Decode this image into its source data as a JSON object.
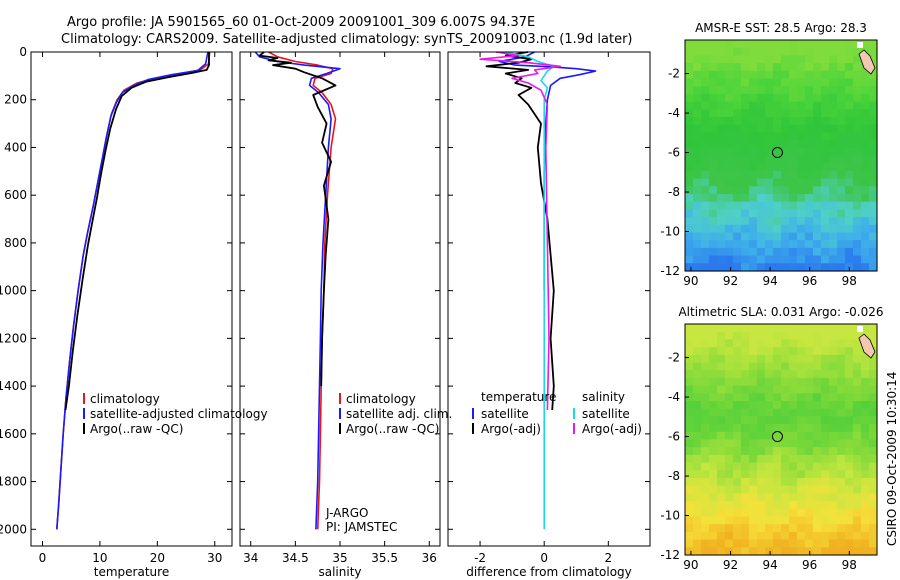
{
  "title": {
    "line1": "Argo profile: JA 5901565_60 01-Oct-2009 20091001_309 6.007S 94.37E",
    "line2": "Climatology: CARS2009. Satellite-adjusted climatology: synTS_20091003.nc (1.9d later)"
  },
  "credit": "CSIRO 09-Oct-2009 10:30:14",
  "chart_data": [
    {
      "type": "line",
      "id": "temperature",
      "xlabel": "temperature",
      "xlim": [
        -2,
        33
      ],
      "xticks": [
        0,
        10,
        20,
        30
      ],
      "ylim": [
        0,
        2070
      ],
      "yticks": [
        0,
        200,
        400,
        600,
        800,
        1000,
        1200,
        1400,
        1600,
        1800,
        2000
      ],
      "yreversed": true,
      "legend": [
        "climatology",
        "satellite-adjusted climatology",
        "Argo(..raw -QC)"
      ],
      "series": [
        {
          "name": "climatology",
          "color": "#e8161b",
          "width": 1.6,
          "x": [
            29.1,
            28.9,
            27.5,
            24,
            19.5,
            16.5,
            14.2,
            13,
            12,
            11.2,
            10.4,
            9.6,
            8.8,
            7.9,
            7.1,
            6.2,
            5.4,
            4.7,
            4.1,
            3.6,
            3.2,
            2.8,
            2.5
          ],
          "y": [
            0,
            50,
            75,
            90,
            110,
            130,
            160,
            200,
            260,
            350,
            450,
            550,
            650,
            750,
            850,
            1000,
            1150,
            1300,
            1450,
            1600,
            1750,
            1900,
            2000
          ]
        },
        {
          "name": "satellite-adjusted climatology",
          "color": "#1a1aff",
          "width": 1.6,
          "x": [
            28.8,
            28.4,
            27,
            22.5,
            18.5,
            15.9,
            13.9,
            12.9,
            11.9,
            11.1,
            10.4,
            9.6,
            8.8,
            7.9,
            7.1,
            6.2,
            5.4,
            4.7,
            4.1,
            3.6,
            3.2,
            2.8,
            2.5
          ],
          "y": [
            0,
            50,
            78,
            95,
            115,
            140,
            170,
            210,
            270,
            360,
            450,
            550,
            650,
            750,
            850,
            1000,
            1150,
            1300,
            1450,
            1600,
            1750,
            1900,
            2000
          ]
        },
        {
          "name": "Argo(..raw -QC)",
          "color": "#000000",
          "width": 1.8,
          "x": [
            29,
            29,
            28.6,
            26,
            22,
            18,
            15.5,
            13.8,
            12.8,
            11.8,
            11,
            10.2,
            9.5,
            8.7,
            7.9,
            7.0,
            6.1,
            5.3,
            4.6,
            4.0
          ],
          "y": [
            0,
            55,
            75,
            88,
            105,
            125,
            150,
            185,
            240,
            320,
            410,
            510,
            610,
            710,
            810,
            950,
            1100,
            1250,
            1400,
            1500
          ]
        }
      ]
    },
    {
      "type": "line",
      "id": "salinity",
      "xlabel": "salinity",
      "xlim": [
        33.88,
        36.12
      ],
      "xticks": [
        34,
        34.5,
        35,
        35.5,
        36
      ],
      "ylim": [
        0,
        2070
      ],
      "yreversed": true,
      "legend": [
        "climatology",
        "satellite adj. clim.",
        "Argo(..raw -QC)"
      ],
      "annotation": [
        "J-ARGO",
        "PI: JAMSTEC"
      ],
      "series": [
        {
          "name": "climatology",
          "color": "#e8161b",
          "width": 1.6,
          "x": [
            34.2,
            34.3,
            34.5,
            34.75,
            34.92,
            34.9,
            34.72,
            34.7,
            34.8,
            34.9,
            34.95,
            34.9,
            34.86,
            34.83,
            34.82,
            34.8,
            34.79,
            34.78,
            34.77,
            34.76,
            34.75
          ],
          "y": [
            0,
            20,
            40,
            55,
            70,
            90,
            110,
            140,
            170,
            220,
            280,
            400,
            600,
            800,
            1000,
            1200,
            1400,
            1600,
            1800,
            1900,
            2000
          ]
        },
        {
          "name": "satellite adj. clim.",
          "color": "#1a1aff",
          "width": 1.6,
          "x": [
            34.05,
            34.1,
            34.3,
            34.6,
            35.0,
            34.85,
            34.68,
            34.66,
            34.76,
            34.87,
            34.9,
            34.87,
            34.84,
            34.81,
            34.79,
            34.78,
            34.77,
            34.76,
            34.75,
            34.74,
            34.73
          ],
          "y": [
            0,
            20,
            40,
            55,
            70,
            90,
            110,
            140,
            170,
            220,
            280,
            400,
            600,
            800,
            1000,
            1200,
            1400,
            1600,
            1800,
            1900,
            2000
          ]
        },
        {
          "name": "Argo(..raw -QC)",
          "color": "#000000",
          "width": 1.8,
          "x": [
            34.15,
            34.1,
            34.3,
            34.2,
            34.45,
            34.25,
            34.5,
            34.6,
            34.8,
            34.95,
            34.7,
            34.75,
            34.85,
            34.8,
            34.9,
            34.82,
            34.87,
            34.84,
            34.82,
            34.8,
            34.79
          ],
          "y": [
            0,
            15,
            25,
            35,
            45,
            55,
            70,
            85,
            110,
            140,
            180,
            230,
            300,
            380,
            460,
            560,
            700,
            850,
            1000,
            1200,
            1400
          ]
        }
      ]
    },
    {
      "type": "line",
      "id": "difference",
      "xlabel": "difference from climatology",
      "xlim": [
        -3,
        3.3
      ],
      "xticks": [
        -2,
        0,
        2
      ],
      "ylim": [
        0,
        2070
      ],
      "yreversed": true,
      "legend_left": {
        "title": "temperature",
        "items": [
          "satellite",
          "Argo(-adj)"
        ]
      },
      "legend_right": {
        "title": "salinity",
        "items": [
          "satellite",
          "Argo(-adj)"
        ]
      },
      "series": [
        {
          "name": "temperature satellite",
          "color": "#1a1aff",
          "width": 1.6,
          "x": [
            -0.3,
            -0.6,
            -1.4,
            -0.9,
            0.2,
            1.0,
            1.6,
            1.1,
            0.5,
            0.2,
            0.1,
            0.05,
            0,
            0,
            0
          ],
          "y": [
            0,
            20,
            40,
            55,
            62,
            70,
            80,
            95,
            110,
            140,
            200,
            300,
            500,
            800,
            1000
          ]
        },
        {
          "name": "temperature Argo(-adj)",
          "color": "#000000",
          "width": 1.8,
          "x": [
            -0.5,
            -1.2,
            -0.4,
            -0.8,
            -1.8,
            -0.5,
            -1.2,
            -0.7,
            -0.9,
            -0.4,
            -0.8,
            -0.5,
            -0.1,
            -0.2,
            -0.1,
            0.1,
            0.2,
            0.3,
            0.2,
            0.3,
            0.25
          ],
          "y": [
            0,
            15,
            30,
            45,
            60,
            75,
            90,
            110,
            130,
            150,
            180,
            220,
            300,
            400,
            550,
            700,
            850,
            1000,
            1200,
            1400,
            1500
          ]
        },
        {
          "name": "salinity satellite",
          "color": "#1ad8e8",
          "width": 1.6,
          "x": [
            -1.2,
            -0.5,
            -0.2,
            0.3,
            0.1,
            0,
            -0.1,
            0.1,
            0,
            0,
            0,
            0,
            0,
            0,
            0
          ],
          "y": [
            0,
            20,
            40,
            60,
            80,
            100,
            120,
            150,
            200,
            300,
            600,
            1000,
            1400,
            1800,
            2000
          ]
        },
        {
          "name": "salinity Argo(-adj)",
          "color": "#e81ae8",
          "width": 1.6,
          "x": [
            -1.5,
            -0.8,
            -2.0,
            -0.5,
            0.5,
            -0.3,
            -0.2,
            -1.0,
            -0.5,
            -0.1,
            0.1,
            0.05,
            0.1,
            0.15,
            0.1
          ],
          "y": [
            0,
            15,
            30,
            45,
            60,
            75,
            90,
            110,
            130,
            160,
            220,
            400,
            800,
            1200,
            1500
          ]
        }
      ]
    },
    {
      "type": "heatmap",
      "id": "sst_map",
      "title": "AMSR-E SST: 28.5 Argo: 28.3",
      "xlim": [
        89.7,
        99.4
      ],
      "ylim": [
        -12,
        -0.3
      ],
      "xticks": [
        90,
        92,
        94,
        96,
        98
      ],
      "yticks": [
        -2,
        -4,
        -6,
        -8,
        -10,
        -12
      ],
      "marker": {
        "x": 94.37,
        "y": -6.0
      },
      "colors": [
        "#2a7aee",
        "#3fb0ea",
        "#4fd0c8",
        "#3ec54a",
        "#2fc53a",
        "#4bd43a",
        "#7fdc3c"
      ],
      "color_stops_by_latitude": [
        -12,
        -10.5,
        -9,
        -7.5,
        -5,
        -3,
        -1
      ]
    },
    {
      "type": "heatmap",
      "id": "sla_map",
      "title": "Altimetric SLA: 0.031 Argo: -0.026",
      "xlim": [
        89.7,
        99.4
      ],
      "ylim": [
        -12,
        -0.3
      ],
      "xticks": [
        90,
        92,
        94,
        96,
        98
      ],
      "yticks": [
        -2,
        -4,
        -6,
        -8,
        -10,
        -12
      ],
      "marker": {
        "x": 94.37,
        "y": -6.0
      },
      "colors": [
        "#f0b020",
        "#f6e13a",
        "#c7e640",
        "#8bdc3a",
        "#55d03a",
        "#8bdc3a",
        "#c7e640"
      ],
      "color_stops_by_latitude": [
        -12,
        -10,
        -8.3,
        -6.8,
        -5,
        -3,
        -1
      ]
    }
  ]
}
